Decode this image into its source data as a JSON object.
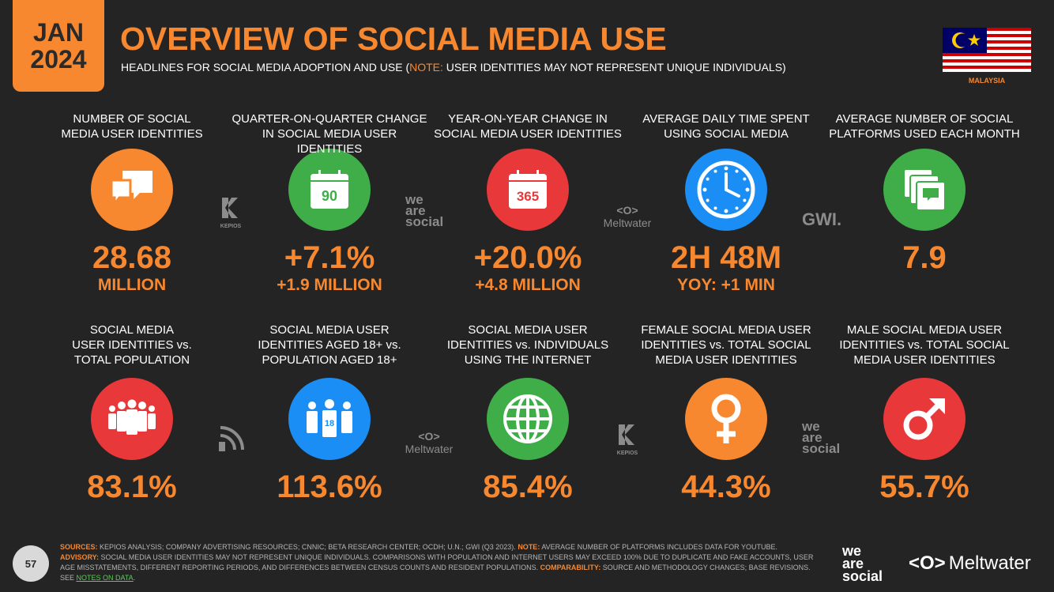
{
  "header": {
    "date_line1": "JAN",
    "date_line2": "2024",
    "title": "OVERVIEW OF SOCIAL MEDIA USE",
    "subtitle_pre": "HEADLINES FOR SOCIAL MEDIA ADOPTION AND USE (",
    "subtitle_note": "NOTE:",
    "subtitle_post": " USER IDENTITIES MAY NOT REPRESENT UNIQUE INDIVIDUALS)",
    "country": "MALAYSIA"
  },
  "row1": [
    {
      "label1": "NUMBER OF SOCIAL",
      "label2": "MEDIA USER IDENTITIES",
      "value": "28.68",
      "sub": "MILLION",
      "icon": "chat-bubbles-icon",
      "color": "orange"
    },
    {
      "label1": "QUARTER-ON-QUARTER CHANGE",
      "label2": "IN SOCIAL MEDIA USER IDENTITIES",
      "value": "+7.1%",
      "sub": "+1.9 MILLION",
      "icon": "calendar-90-icon",
      "icon_text": "90",
      "color": "green"
    },
    {
      "label1": "YEAR-ON-YEAR CHANGE IN",
      "label2": "SOCIAL MEDIA USER IDENTITIES",
      "value": "+20.0%",
      "sub": "+4.8 MILLION",
      "icon": "calendar-365-icon",
      "icon_text": "365",
      "color": "red"
    },
    {
      "label1": "AVERAGE DAILY TIME SPENT",
      "label2": "USING SOCIAL MEDIA",
      "value": "2H 48M",
      "sub": "YOY: +1 MIN",
      "icon": "clock-icon",
      "color": "blue"
    },
    {
      "label1": "AVERAGE NUMBER OF SOCIAL",
      "label2": "PLATFORMS USED EACH MONTH",
      "value": "7.9",
      "sub": "",
      "icon": "stacked-platforms-icon",
      "color": "green"
    }
  ],
  "row2": [
    {
      "label1": "SOCIAL MEDIA",
      "label2": "USER IDENTITIES vs.",
      "label3": "TOTAL POPULATION",
      "value": "83.1%",
      "icon": "people-group-icon",
      "color": "red"
    },
    {
      "label1": "SOCIAL MEDIA USER",
      "label2": "IDENTITIES AGED 18+ vs.",
      "label3": "POPULATION AGED 18+",
      "value": "113.6%",
      "icon": "people-18-icon",
      "icon_text": "18",
      "color": "blue"
    },
    {
      "label1": "SOCIAL MEDIA USER",
      "label2": "IDENTITIES vs. INDIVIDUALS",
      "label3": "USING THE INTERNET",
      "value": "85.4%",
      "icon": "globe-icon",
      "color": "green"
    },
    {
      "label1": "FEMALE SOCIAL MEDIA USER",
      "label2": "IDENTITIES vs. TOTAL SOCIAL",
      "label3": "MEDIA USER IDENTITIES",
      "value": "44.3%",
      "icon": "female-symbol-icon",
      "color": "orange"
    },
    {
      "label1": "MALE SOCIAL MEDIA USER",
      "label2": "IDENTITIES vs. TOTAL SOCIAL",
      "label3": "MEDIA USER IDENTITIES",
      "value": "55.7%",
      "icon": "male-symbol-icon",
      "color": "red"
    }
  ],
  "logos": {
    "kepios": "KEPIOS",
    "was_1": "we",
    "was_2": "are",
    "was_3": "social",
    "meltwater": "Meltwater",
    "gwi": "GWI."
  },
  "footer": {
    "sources_k": "SOURCES:",
    "sources_t": " KEPIOS ANALYSIS; COMPANY ADVERTISING RESOURCES; CNNIC; BETA RESEARCH CENTER; OCDH; U.N.; GWI (Q3 2023). ",
    "note_k": "NOTE:",
    "note_t": " AVERAGE NUMBER OF PLATFORMS INCLUDES DATA FOR YOUTUBE.",
    "advisory_k": "ADVISORY:",
    "advisory_t": " SOCIAL MEDIA USER IDENTITIES MAY NOT REPRESENT UNIQUE INDIVIDUALS. COMPARISONS WITH POPULATION AND INTERNET USERS MAY EXCEED 100% DUE TO DUPLICATE AND FAKE ACCOUNTS, USER AGE MISSTATEMENTS, DIFFERENT REPORTING PERIODS, AND DIFFERENCES BETWEEN CENSUS COUNTS AND RESIDENT POPULATIONS. ",
    "comp_k": "COMPARABILITY:",
    "comp_t": " SOURCE AND METHODOLOGY CHANGES; BASE REVISIONS. SEE ",
    "link": "NOTES ON DATA",
    "end": ".",
    "page": "57"
  }
}
